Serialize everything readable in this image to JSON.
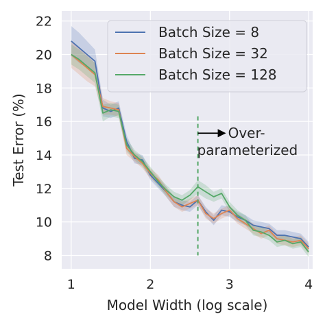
{
  "chart_data": {
    "type": "line",
    "xlabel": "Model Width (log scale)",
    "ylabel": "Test Error (%)",
    "xlim": [
      0.88,
      4.05
    ],
    "ylim": [
      7.2,
      22.6
    ],
    "xticks": [
      1,
      2,
      3,
      4
    ],
    "yticks": [
      8,
      10,
      12,
      14,
      16,
      18,
      20,
      22
    ],
    "grid": true,
    "background": "#eaeaf2",
    "legend_position": "top-right",
    "series": [
      {
        "name": "Batch Size = 8",
        "color": "#4c72b0",
        "x": [
          1.0,
          1.1,
          1.2,
          1.3,
          1.4,
          1.5,
          1.6,
          1.7,
          1.8,
          1.9,
          2.0,
          2.1,
          2.2,
          2.3,
          2.4,
          2.5,
          2.6,
          2.7,
          2.8,
          2.9,
          3.0,
          3.1,
          3.2,
          3.3,
          3.4,
          3.5,
          3.6,
          3.7,
          3.8,
          3.9,
          4.0
        ],
        "y": [
          20.8,
          20.4,
          20.0,
          19.6,
          16.8,
          16.6,
          16.8,
          14.8,
          13.8,
          13.7,
          12.8,
          12.3,
          11.8,
          11.2,
          11.0,
          10.9,
          11.3,
          10.6,
          10.1,
          10.7,
          10.6,
          10.3,
          10.1,
          9.8,
          9.7,
          9.6,
          9.2,
          9.2,
          9.1,
          9.0,
          8.5
        ],
        "band": [
          0.9,
          0.9,
          0.8,
          0.7,
          0.5,
          0.4,
          0.4,
          0.4,
          0.3,
          0.3,
          0.3,
          0.3,
          0.3,
          0.3,
          0.3,
          0.3,
          0.3,
          0.3,
          0.3,
          0.3,
          0.3,
          0.3,
          0.3,
          0.3,
          0.3,
          0.3,
          0.3,
          0.3,
          0.3,
          0.3,
          0.3
        ]
      },
      {
        "name": "Batch Size = 32",
        "color": "#dd8452",
        "x": [
          1.0,
          1.1,
          1.2,
          1.3,
          1.4,
          1.5,
          1.6,
          1.7,
          1.8,
          1.9,
          2.0,
          2.1,
          2.2,
          2.3,
          2.4,
          2.5,
          2.6,
          2.7,
          2.8,
          2.9,
          3.0,
          3.1,
          3.2,
          3.3,
          3.4,
          3.5,
          3.6,
          3.7,
          3.8,
          3.9,
          4.0
        ],
        "y": [
          20.0,
          19.6,
          19.2,
          18.8,
          16.9,
          16.8,
          16.7,
          14.4,
          13.9,
          13.5,
          12.9,
          12.5,
          11.8,
          11.2,
          10.9,
          11.1,
          11.3,
          10.5,
          10.2,
          10.5,
          10.7,
          10.2,
          9.9,
          9.6,
          9.3,
          9.5,
          9.0,
          8.9,
          8.8,
          8.9,
          8.4
        ],
        "band": [
          0.8,
          0.8,
          0.8,
          0.7,
          0.5,
          0.4,
          0.4,
          0.4,
          0.3,
          0.3,
          0.3,
          0.3,
          0.3,
          0.3,
          0.3,
          0.3,
          0.3,
          0.3,
          0.3,
          0.3,
          0.3,
          0.3,
          0.3,
          0.3,
          0.3,
          0.3,
          0.3,
          0.3,
          0.3,
          0.3,
          0.3
        ]
      },
      {
        "name": "Batch Size = 128",
        "color": "#55a868",
        "x": [
          1.0,
          1.1,
          1.2,
          1.3,
          1.4,
          1.5,
          1.6,
          1.7,
          1.8,
          1.9,
          2.0,
          2.1,
          2.2,
          2.3,
          2.4,
          2.5,
          2.6,
          2.7,
          2.8,
          2.9,
          3.0,
          3.1,
          3.2,
          3.3,
          3.4,
          3.5,
          3.6,
          3.7,
          3.8,
          3.9,
          4.0
        ],
        "y": [
          20.0,
          19.7,
          19.3,
          18.9,
          16.5,
          16.7,
          16.6,
          14.6,
          14.0,
          13.6,
          13.0,
          12.4,
          11.9,
          11.5,
          11.3,
          11.6,
          12.1,
          11.8,
          11.5,
          11.7,
          10.9,
          10.4,
          10.1,
          9.5,
          9.4,
          9.2,
          8.8,
          8.9,
          8.7,
          8.8,
          8.2
        ],
        "band": [
          0.6,
          0.6,
          0.6,
          0.6,
          0.5,
          0.4,
          0.4,
          0.4,
          0.3,
          0.3,
          0.3,
          0.3,
          0.3,
          0.3,
          0.3,
          0.3,
          0.4,
          0.4,
          0.3,
          0.3,
          0.3,
          0.3,
          0.3,
          0.3,
          0.3,
          0.3,
          0.3,
          0.3,
          0.3,
          0.3,
          0.3
        ]
      }
    ],
    "vline": {
      "x": 2.6,
      "color": "#55a868",
      "style": "dashed"
    },
    "annotation": {
      "line1": "Over-",
      "line2": "parameterized",
      "arrow": "right",
      "x": 2.6,
      "y": 15.3
    }
  }
}
